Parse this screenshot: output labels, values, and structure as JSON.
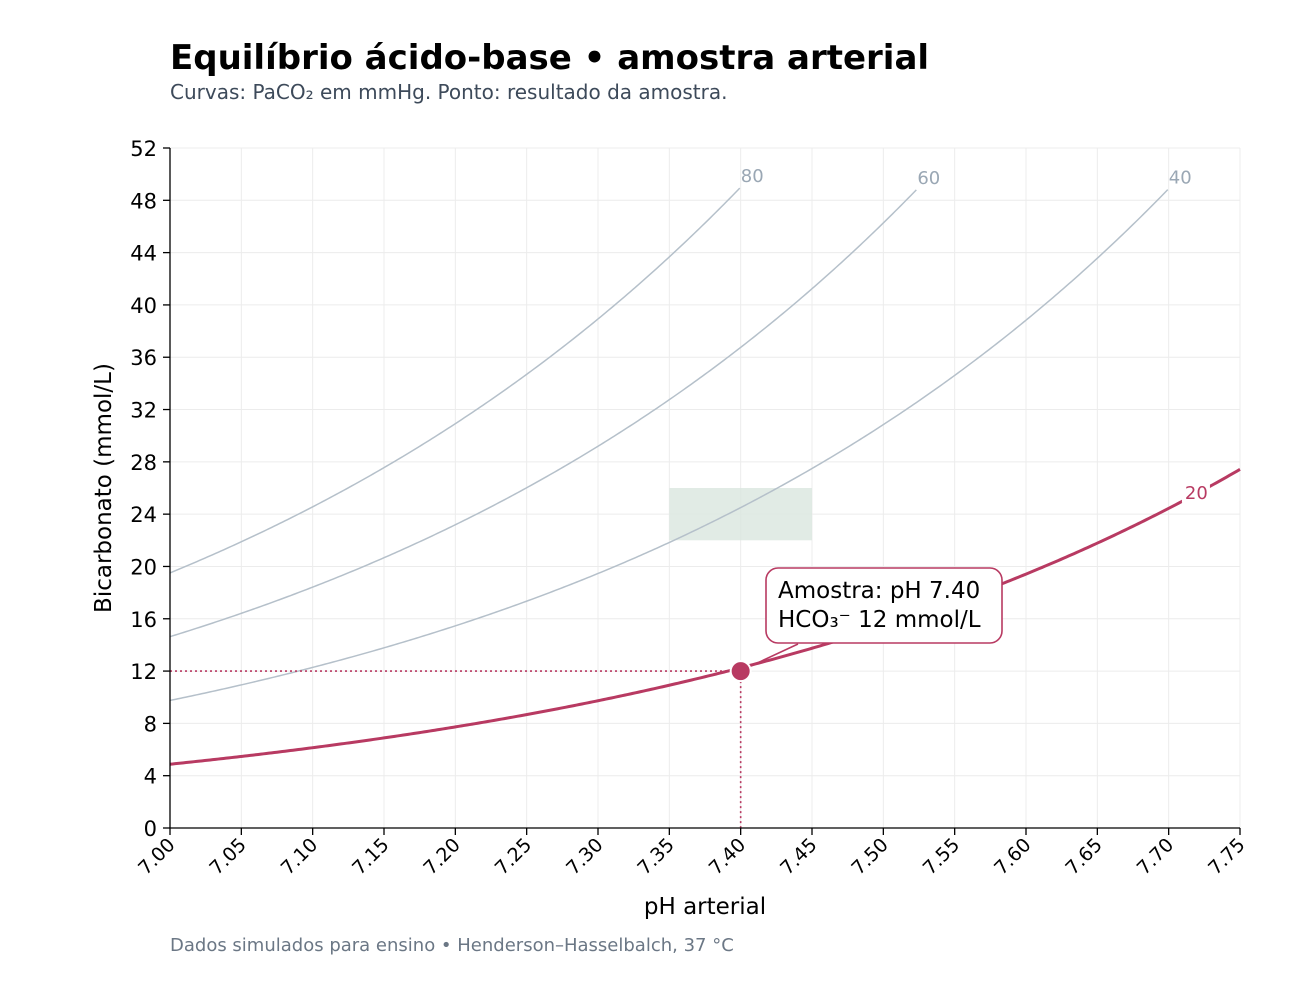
{
  "title": "Equilíbrio ácido-base • amostra arterial",
  "subtitle": "Curvas: PaCO₂ em mmHg. Ponto: resultado da amostra.",
  "source": "Dados simulados para ensino • Henderson–Hasselbalch, 37 °C",
  "chart_data": {
    "type": "line",
    "xlabel": "pH arterial",
    "ylabel": "Bicarbonato (mmol/L)",
    "xlim": [
      7.0,
      7.75
    ],
    "ylim": [
      0,
      52
    ],
    "xticks": [
      "7.00",
      "7.05",
      "7.10",
      "7.15",
      "7.20",
      "7.25",
      "7.30",
      "7.35",
      "7.40",
      "7.45",
      "7.50",
      "7.55",
      "7.60",
      "7.65",
      "7.70",
      "7.75"
    ],
    "yticks": [
      "0",
      "4",
      "8",
      "12",
      "16",
      "20",
      "24",
      "28",
      "32",
      "36",
      "40",
      "44",
      "48",
      "52"
    ],
    "grid": true,
    "series": [
      {
        "name": "80",
        "paco2": 80,
        "color": "#b5c0ca",
        "highlight": false
      },
      {
        "name": "60",
        "paco2": 60,
        "color": "#b5c0ca",
        "highlight": false
      },
      {
        "name": "40",
        "paco2": 40,
        "color": "#b5c0ca",
        "highlight": false
      },
      {
        "name": "20",
        "paco2": 20,
        "color": "#b83a62",
        "highlight": true
      }
    ],
    "label_colors": {
      "normal": "#9aa7b4",
      "highlight": "#b83a62"
    },
    "normal_range": {
      "ph": [
        7.35,
        7.45
      ],
      "hco3": [
        22,
        26
      ],
      "color": "#dce8e0"
    },
    "sample": {
      "ph": 7.4,
      "hco3": 12,
      "color": "#b83a62"
    },
    "annotation": {
      "line1": "Amostra: pH 7.40",
      "line2": "HCO₃⁻ 12 mmol/L"
    }
  }
}
